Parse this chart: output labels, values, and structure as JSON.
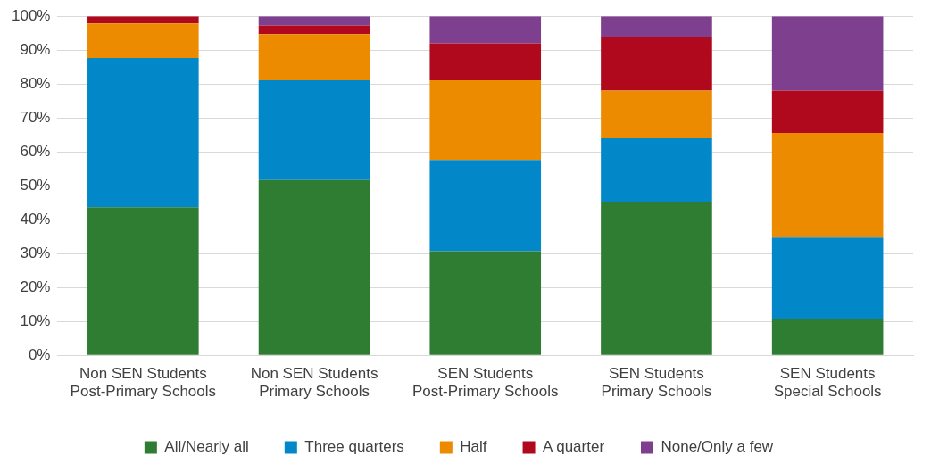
{
  "chart_data": {
    "type": "bar",
    "stacked": true,
    "categories": [
      "Non SEN Students\nPost-Primary Schools",
      "Non SEN Students\nPrimary Schools",
      "SEN Students\nPost-Primary Schools",
      "SEN Students\nPrimary Schools",
      "SEN Students\nSpecial Schools"
    ],
    "series": [
      {
        "name": "All/Nearly all",
        "color": "#2e7d32",
        "values": [
          43.7,
          51.7,
          30.7,
          45.3,
          10.7
        ]
      },
      {
        "name": "Three quarters",
        "color": "#0288c8",
        "values": [
          44,
          29.4,
          26.9,
          18.7,
          24
        ]
      },
      {
        "name": "Half",
        "color": "#ec8a00",
        "values": [
          10.2,
          13.6,
          23.5,
          14.1,
          30.9
        ]
      },
      {
        "name": "A quarter",
        "color": "#b0091e",
        "values": [
          2.1,
          2.6,
          10.9,
          15.8,
          12.5
        ]
      },
      {
        "name": "None/Only a few",
        "color": "#7d3f8e",
        "values": [
          0,
          2.7,
          8,
          6.1,
          21.9
        ]
      }
    ],
    "ylim": [
      0,
      100
    ],
    "yticks": [
      {
        "value": 0,
        "label": "0%"
      },
      {
        "value": 10,
        "label": "10%"
      },
      {
        "value": 20,
        "label": "20%"
      },
      {
        "value": 30,
        "label": "30%"
      },
      {
        "value": 40,
        "label": "40%"
      },
      {
        "value": 50,
        "label": "50%"
      },
      {
        "value": 60,
        "label": "60%"
      },
      {
        "value": 70,
        "label": "70%"
      },
      {
        "value": 80,
        "label": "80%"
      },
      {
        "value": 90,
        "label": "90%"
      },
      {
        "value": 100,
        "label": "100%"
      }
    ],
    "grid": "y",
    "legend": "bottom"
  }
}
